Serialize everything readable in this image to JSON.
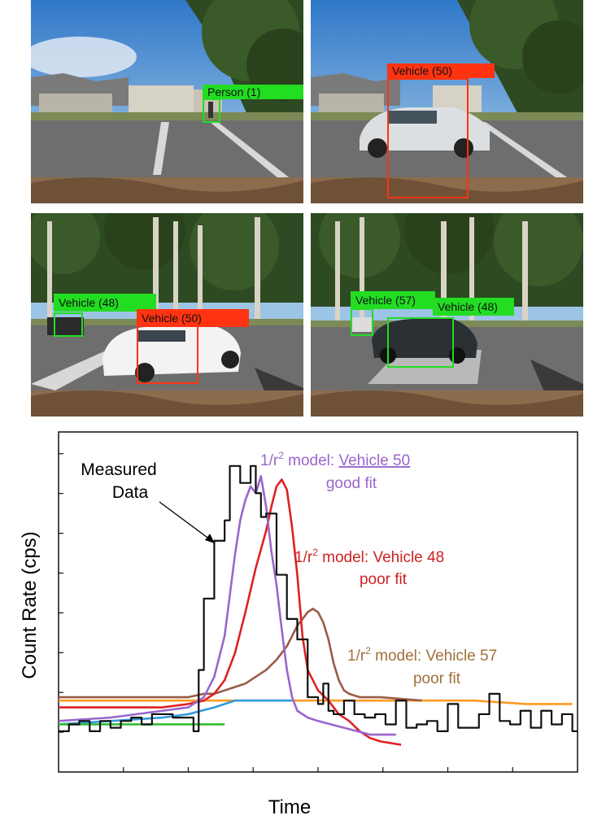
{
  "colors": {
    "match": "#22dd22",
    "mismatch": "#ff3311",
    "measured": "#111111",
    "model_v50": "#9966cc",
    "model_v48": "#dd2222",
    "model_v57": "#9a5b45",
    "background_orange": "#ff9922",
    "background_blue": "#3399dd",
    "background_green": "#33bb33"
  },
  "panels": [
    {
      "name": "frame-1",
      "detections": [
        {
          "label": "Person (1)",
          "color": "match"
        }
      ]
    },
    {
      "name": "frame-2",
      "detections": [
        {
          "label": "Vehicle (50)",
          "color": "mismatch"
        }
      ]
    },
    {
      "name": "frame-3",
      "detections": [
        {
          "label": "Vehicle (48)",
          "color": "match"
        },
        {
          "label": "Vehicle (50)",
          "color": "mismatch"
        }
      ]
    },
    {
      "name": "frame-4",
      "detections": [
        {
          "label": "Vehicle (57)",
          "color": "match"
        },
        {
          "label": "Vehicle (48)",
          "color": "match"
        }
      ]
    }
  ],
  "chart_data": {
    "type": "line",
    "xlabel": "Time",
    "ylabel": "Count Rate (cps)",
    "x_ticks_labeled": false,
    "y_ticks_labeled": false,
    "grid": false,
    "x_range": [
      0,
      100
    ],
    "y_range": [
      0,
      100
    ],
    "annotations": {
      "measured": "Measured\nData",
      "v50_prefix": "1/r",
      "v50_sup": "2",
      "v50_mid": " model: ",
      "v50_name": "Vehicle 50",
      "v50_verdict": "good fit",
      "v48_prefix": "1/r",
      "v48_sup": "2",
      "v48_text": " model: Vehicle 48",
      "v48_verdict": "poor fit",
      "v57_prefix": "1/r",
      "v57_sup": "2",
      "v57_text": " model: Vehicle 57",
      "v57_verdict": "poor fit"
    },
    "series": [
      {
        "key": "measured",
        "style": "step",
        "color": "measured",
        "x": [
          0,
          2,
          4,
          6,
          8,
          10,
          12,
          14,
          16,
          18,
          20,
          22,
          24,
          26,
          27,
          28,
          30,
          32,
          33,
          35,
          37,
          38,
          39,
          40,
          42,
          44,
          46,
          48,
          50,
          51,
          52,
          53,
          55,
          57,
          59,
          61,
          63,
          65,
          67,
          69,
          71,
          73,
          75,
          77,
          79,
          81,
          83,
          85,
          87,
          89,
          91,
          93,
          95,
          97,
          99
        ],
        "y": [
          12,
          14,
          15,
          12,
          15,
          13,
          15,
          16,
          14,
          17,
          17,
          16,
          16,
          12,
          30,
          51,
          68,
          74,
          90,
          85,
          90,
          82,
          75,
          76,
          58,
          45,
          39,
          22,
          20,
          26,
          18,
          17,
          21,
          17,
          16,
          17,
          14,
          21,
          13,
          14,
          15,
          12,
          20,
          13,
          13,
          17,
          23,
          15,
          14,
          18,
          13,
          18,
          14,
          17,
          12
        ]
      },
      {
        "key": "model_v50",
        "style": "line",
        "color": "model_v50",
        "x": [
          0,
          10,
          20,
          25,
          28,
          30,
          32,
          33,
          34,
          35,
          36,
          37,
          38,
          39,
          40,
          41,
          42,
          43,
          44,
          45,
          46,
          48,
          50,
          55,
          60,
          65
        ],
        "y": [
          15,
          16,
          18,
          19,
          22,
          28,
          40,
          52,
          64,
          74,
          80,
          84,
          82,
          87,
          78,
          65,
          55,
          42,
          30,
          22,
          18,
          16,
          15,
          13,
          11,
          11
        ]
      },
      {
        "key": "model_v48",
        "style": "line",
        "color": "model_v48",
        "x": [
          0,
          10,
          20,
          25,
          28,
          30,
          32,
          34,
          36,
          38,
          40,
          41,
          42,
          43,
          44,
          45,
          46,
          47,
          48,
          50,
          52,
          54,
          56,
          58,
          60,
          62,
          66
        ],
        "y": [
          19,
          19,
          19,
          20,
          21,
          23,
          27,
          35,
          47,
          60,
          71,
          78,
          84,
          86,
          83,
          72,
          58,
          40,
          30,
          24,
          21,
          17,
          15,
          12,
          10,
          9,
          8
        ]
      },
      {
        "key": "model_v57",
        "style": "line",
        "color": "model_v57",
        "x": [
          0,
          10,
          20,
          25,
          28,
          30,
          32,
          34,
          36,
          38,
          40,
          42,
          44,
          46,
          48,
          49,
          50,
          51,
          52,
          53,
          54,
          55,
          56,
          58,
          62,
          70
        ],
        "y": [
          22,
          22,
          22,
          22,
          23,
          23,
          24,
          25,
          26,
          28,
          30,
          33,
          37,
          43,
          47,
          48,
          47,
          44,
          39,
          32,
          27,
          24,
          23,
          22,
          22,
          21
        ]
      },
      {
        "key": "background_orange",
        "style": "line",
        "color": "background_orange",
        "x": [
          0,
          10,
          20,
          30,
          40,
          50,
          60,
          70,
          80,
          90,
          99
        ],
        "y": [
          21,
          21,
          21,
          21,
          21,
          21,
          21,
          21,
          21,
          20,
          20
        ]
      },
      {
        "key": "background_blue",
        "style": "line",
        "color": "background_blue",
        "x": [
          0,
          10,
          20,
          25,
          30,
          34,
          38,
          42,
          45
        ],
        "y": [
          14,
          15,
          16,
          17,
          19,
          21,
          21,
          21,
          21
        ]
      },
      {
        "key": "background_green",
        "style": "line",
        "color": "background_green",
        "x": [
          0,
          8,
          16,
          24,
          30,
          32
        ],
        "y": [
          14,
          14,
          14,
          14,
          14,
          14
        ]
      }
    ]
  }
}
